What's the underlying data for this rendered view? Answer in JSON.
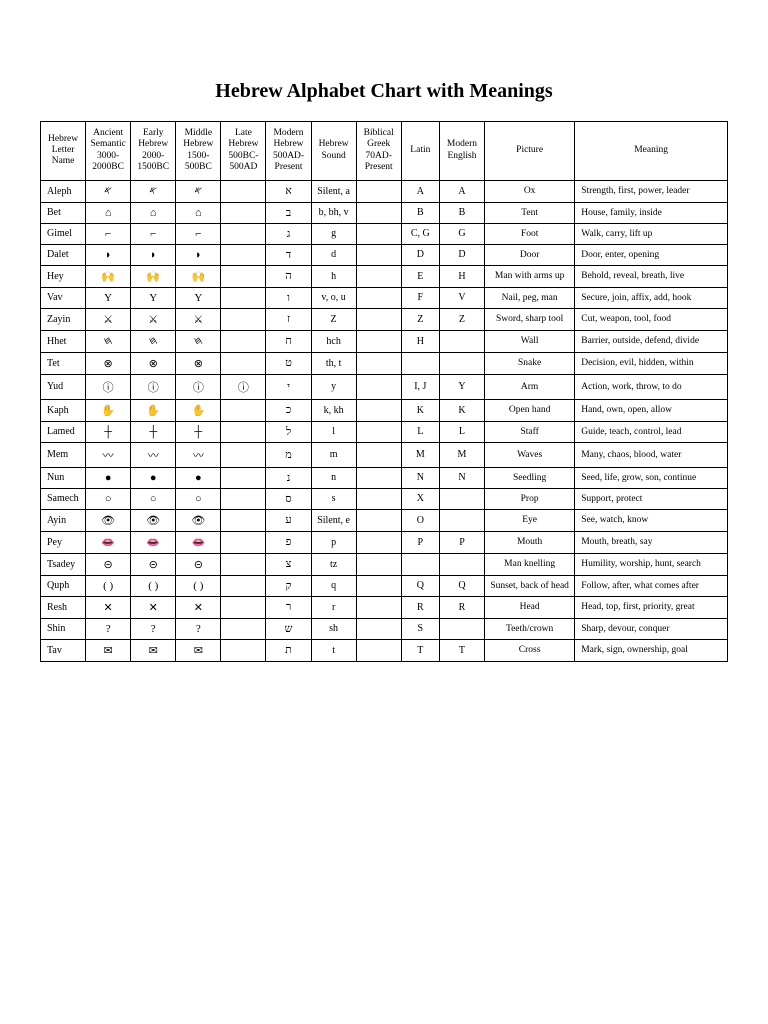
{
  "title": "Hebrew Alphabet Chart with Meanings",
  "columns": [
    "Hebrew Letter Name",
    "Ancient Semantic 3000-2000BC",
    "Early Hebrew 2000-1500BC",
    "Middle Hebrew 1500-500BC",
    "Late Hebrew 500BC-500AD",
    "Modern Hebrew 500AD-Present",
    "Hebrew Sound",
    "Biblical Greek 70AD-Present",
    "Latin",
    "Modern English",
    "Picture",
    "Meaning"
  ],
  "rows": [
    {
      "name": "Aleph",
      "glyphs": [
        "𐤀",
        "𐤀",
        "𐤀",
        "",
        "א"
      ],
      "sound": "Silent, a",
      "greek": "",
      "latin": "A",
      "english": "A",
      "picture": "Ox",
      "meaning": "Strength, first, power, leader"
    },
    {
      "name": "Bet",
      "glyphs": [
        "⌂",
        "⌂",
        "⌂",
        "",
        "ב"
      ],
      "sound": "b, bh, v",
      "greek": "",
      "latin": "B",
      "english": "B",
      "picture": "Tent",
      "meaning": "House, family, inside"
    },
    {
      "name": "Gimel",
      "glyphs": [
        "⌐",
        "⌐",
        "⌐",
        "",
        "ג"
      ],
      "sound": "g",
      "greek": "",
      "latin": "C, G",
      "english": "G",
      "picture": "Foot",
      "meaning": "Walk, carry, lift up"
    },
    {
      "name": "Dalet",
      "glyphs": [
        "◗",
        "◗",
        "◗",
        "",
        "ד"
      ],
      "sound": "d",
      "greek": "",
      "latin": "D",
      "english": "D",
      "picture": "Door",
      "meaning": "Door, enter, opening"
    },
    {
      "name": "Hey",
      "glyphs": [
        "🙌",
        "🙌",
        "🙌",
        "",
        "ה"
      ],
      "sound": "h",
      "greek": "",
      "latin": "E",
      "english": "H",
      "picture": "Man with arms up",
      "meaning": "Behold, reveal, breath, live"
    },
    {
      "name": "Vav",
      "glyphs": [
        "Y",
        "Y",
        "Y",
        "",
        "ו"
      ],
      "sound": "v, o, u",
      "greek": "",
      "latin": "F",
      "english": "V",
      "picture": "Nail, peg, man",
      "meaning": "Secure, join, affix, add, hook"
    },
    {
      "name": "Zayin",
      "glyphs": [
        "⚔",
        "⚔",
        "⚔",
        "",
        "ז"
      ],
      "sound": "Z",
      "greek": "",
      "latin": "Z",
      "english": "Z",
      "picture": "Sword, sharp tool",
      "meaning": "Cut, weapon, tool, food"
    },
    {
      "name": "Hhet",
      "glyphs": [
        "𐤇",
        "𐤇",
        "𐤇",
        "",
        "ח"
      ],
      "sound": "hch",
      "greek": "",
      "latin": "H",
      "english": "",
      "picture": "Wall",
      "meaning": "Barrier, outside, defend, divide"
    },
    {
      "name": "Tet",
      "glyphs": [
        "⊗",
        "⊗",
        "⊗",
        "",
        "ט"
      ],
      "sound": "th, t",
      "greek": "",
      "latin": "",
      "english": "",
      "picture": "Snake",
      "meaning": "Decision, evil, hidden, within"
    },
    {
      "name": "Yud",
      "glyphs": [
        "ⓘ",
        "ⓘ",
        "ⓘ",
        "ⓘ",
        "י"
      ],
      "sound": "y",
      "greek": "",
      "latin": "I, J",
      "english": "Y",
      "picture": "Arm",
      "meaning": "Action, work, throw, to do"
    },
    {
      "name": "Kaph",
      "glyphs": [
        "✋",
        "✋",
        "✋",
        "",
        "כ"
      ],
      "sound": "k, kh",
      "greek": "",
      "latin": "K",
      "english": "K",
      "picture": "Open hand",
      "meaning": "Hand, own, open, allow"
    },
    {
      "name": "Lamed",
      "glyphs": [
        "┼",
        "┼",
        "┼",
        "",
        "ל"
      ],
      "sound": "l",
      "greek": "",
      "latin": "L",
      "english": "L",
      "picture": "Staff",
      "meaning": "Guide, teach, control, lead"
    },
    {
      "name": "Mem",
      "glyphs": [
        "〰",
        "〰",
        "〰",
        "",
        "מ"
      ],
      "sound": "m",
      "greek": "",
      "latin": "M",
      "english": "M",
      "picture": "Waves",
      "meaning": "Many, chaos, blood, water"
    },
    {
      "name": "Nun",
      "glyphs": [
        "●",
        "●",
        "●",
        "",
        "נ"
      ],
      "sound": "n",
      "greek": "",
      "latin": "N",
      "english": "N",
      "picture": "Seedling",
      "meaning": "Seed, life, grow, son, continue"
    },
    {
      "name": "Samech",
      "glyphs": [
        "○",
        "○",
        "○",
        "",
        "ס"
      ],
      "sound": "s",
      "greek": "",
      "latin": "X",
      "english": "",
      "picture": "Prop",
      "meaning": "Support, protect"
    },
    {
      "name": "Ayin",
      "glyphs": [
        "👁",
        "👁",
        "👁",
        "",
        "ע"
      ],
      "sound": "Silent, e",
      "greek": "",
      "latin": "O",
      "english": "",
      "picture": "Eye",
      "meaning": "See, watch, know"
    },
    {
      "name": "Pey",
      "glyphs": [
        "👄",
        "👄",
        "👄",
        "",
        "פ"
      ],
      "sound": "p",
      "greek": "",
      "latin": "P",
      "english": "P",
      "picture": "Mouth",
      "meaning": "Mouth, breath, say"
    },
    {
      "name": "Tsadey",
      "glyphs": [
        "⊝",
        "⊝",
        "⊝",
        "",
        "צ"
      ],
      "sound": "tz",
      "greek": "",
      "latin": "",
      "english": "",
      "picture": "Man knelling",
      "meaning": "Humility, worship, hunt, search"
    },
    {
      "name": "Quph",
      "glyphs": [
        "( )",
        "( )",
        "( )",
        "",
        "ק"
      ],
      "sound": "q",
      "greek": "",
      "latin": "Q",
      "english": "Q",
      "picture": "Sunset, back of head",
      "meaning": "Follow, after, what comes after"
    },
    {
      "name": "Resh",
      "glyphs": [
        "✕",
        "✕",
        "✕",
        "",
        "ר"
      ],
      "sound": "r",
      "greek": "",
      "latin": "R",
      "english": "R",
      "picture": "Head",
      "meaning": "Head, top, first, priority, great"
    },
    {
      "name": "Shin",
      "glyphs": [
        "?",
        "?",
        "?",
        "",
        "ש"
      ],
      "sound": "sh",
      "greek": "",
      "latin": "S",
      "english": "",
      "picture": "Teeth/crown",
      "meaning": "Sharp, devour, conquer"
    },
    {
      "name": "Tav",
      "glyphs": [
        "✉",
        "✉",
        "✉",
        "",
        "ת"
      ],
      "sound": "t",
      "greek": "",
      "latin": "T",
      "english": "T",
      "picture": "Cross",
      "meaning": "Mark, sign, ownership, goal"
    }
  ],
  "styling": {
    "background_color": "#ffffff",
    "text_color": "#000000",
    "border_color": "#000000",
    "font_family": "Times New Roman",
    "title_fontsize": 20,
    "header_fontsize": 9.5,
    "cell_fontsize": 10,
    "column_widths_pct": [
      6.5,
      6.5,
      6.5,
      6.5,
      6.5,
      6.5,
      6.5,
      6.5,
      5.5,
      6.5,
      13,
      22
    ]
  }
}
